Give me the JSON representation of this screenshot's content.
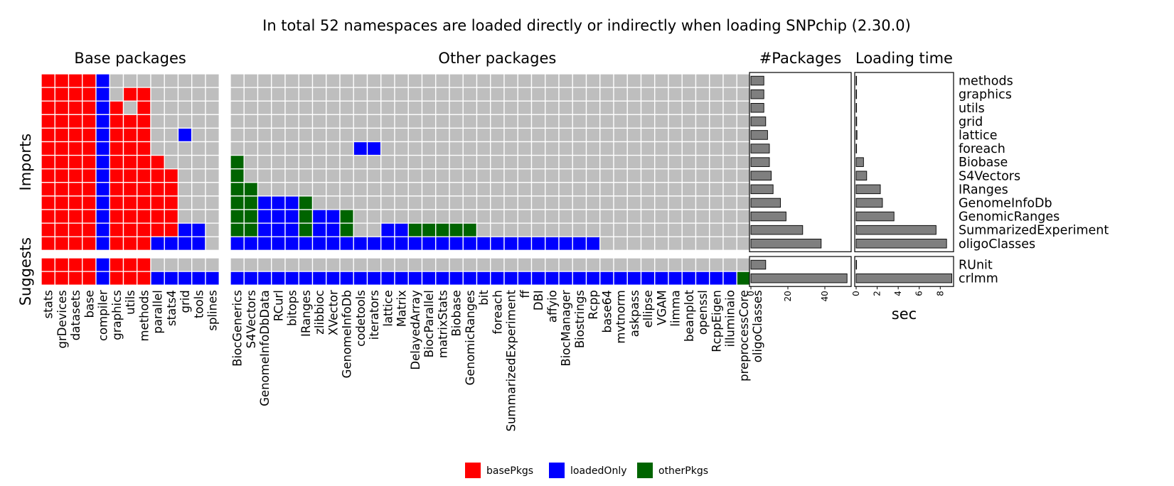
{
  "title": "In total 52 namespaces are loaded directly or indirectly when loading SNPchip (2.30.0)",
  "colors": {
    "basePkgs": "#ff0000",
    "loadedOnly": "#0000ff",
    "otherPkgs": "#006400",
    "empty": "#bebebe",
    "bar": "#7f7f7f"
  },
  "chart_data": [
    {
      "type": "heatmap",
      "panels": [
        {
          "title": "Base packages",
          "columns": [
            "stats",
            "grDevices",
            "datasets",
            "base",
            "compiler",
            "graphics",
            "utils",
            "methods",
            "parallel",
            "stats4",
            "grid",
            "tools",
            "splines"
          ]
        },
        {
          "title": "Other packages",
          "columns": [
            "BiocGenerics",
            "S4Vectors",
            "GenomeInfoDbData",
            "RCurl",
            "bitops",
            "IRanges",
            "zlibbioc",
            "XVector",
            "GenomeInfoDb",
            "codetools",
            "iterators",
            "lattice",
            "Matrix",
            "DelayedArray",
            "BiocParallel",
            "matrixStats",
            "Biobase",
            "GenomicRanges",
            "bit",
            "foreach",
            "SummarizedExperiment",
            "ff",
            "DBI",
            "affyio",
            "BiocManager",
            "Biostrings",
            "Rcpp",
            "base64",
            "mvtnorm",
            "askpass",
            "ellipse",
            "VGAM",
            "limma",
            "beanplot",
            "openssl",
            "RcppEigen",
            "illuminaio",
            "preprocessCore",
            "oligoClasses"
          ]
        }
      ],
      "row_groups": [
        {
          "label": "Imports",
          "rows": [
            "methods",
            "graphics",
            "utils",
            "grid",
            "lattice",
            "foreach",
            "Biobase",
            "S4Vectors",
            "IRanges",
            "GenomeInfoDb",
            "GenomicRanges",
            "SummarizedExperiment",
            "oligoClasses"
          ]
        },
        {
          "label": "Suggests",
          "rows": [
            "RUnit",
            "crlmm"
          ]
        }
      ],
      "code_legend": {
        "0": "none",
        "1": "basePkgs",
        "2": "loadedOnly",
        "3": "otherPkgs"
      },
      "cells": {
        "methods": {
          "base": "1111200000000",
          "other": "000000000000000000000000000000000000000"
        },
        "graphics": {
          "base": "1111201100000",
          "other": "000000000000000000000000000000000000000"
        },
        "utils": {
          "base": "1111210100000",
          "other": "000000000000000000000000000000000000000"
        },
        "grid": {
          "base": "1111211100000",
          "other": "000000000000000000000000000000000000000"
        },
        "lattice": {
          "base": "1111211100200",
          "other": "000000000000000000000000000000000000000"
        },
        "foreach": {
          "base": "1111211100000",
          "other": "000000000220000000000000000000000000000"
        },
        "Biobase": {
          "base": "1111211110000",
          "other": "300000000000000000000000000000000000000"
        },
        "S4Vectors": {
          "base": "1111211111000",
          "other": "300000000000000000000000000000000000000"
        },
        "IRanges": {
          "base": "1111211111000",
          "other": "330000000000000000000000000000000000000"
        },
        "GenomeInfoDb": {
          "base": "1111211111000",
          "other": "332223000000000000000000000000000000000"
        },
        "GenomicRanges": {
          "base": "1111211111000",
          "other": "332223223000000000000000000000000000000"
        },
        "SummarizedExperiment": {
          "base": "1111211111220",
          "other": "332223223002233333000000000000000000000"
        },
        "oligoClasses": {
          "base": "1111211122220",
          "other": "222222222222222222222222222000000000000"
        },
        "RUnit": {
          "base": "1111211100000",
          "other": "000000000000000000000000000000000000000"
        },
        "crlmm": {
          "base": "1111211122222",
          "other": "222222222222222222222222222222222222233"
        }
      }
    },
    {
      "type": "bar",
      "orientation": "horizontal",
      "title": "#Packages",
      "xlabel": "",
      "xlim": [
        0,
        55
      ],
      "xticks": [
        0,
        20,
        40
      ],
      "categories": [
        "methods",
        "graphics",
        "utils",
        "grid",
        "lattice",
        "foreach",
        "Biobase",
        "S4Vectors",
        "IRanges",
        "GenomeInfoDb",
        "GenomicRanges",
        "SummarizedExperiment",
        "oligoClasses",
        "RUnit",
        "crlmm"
      ],
      "values": [
        7,
        7,
        7,
        8,
        9,
        10,
        10,
        11,
        12,
        16,
        19,
        28,
        38,
        8,
        52
      ]
    },
    {
      "type": "bar",
      "orientation": "horizontal",
      "title": "Loading time",
      "xlabel": "sec",
      "xlim": [
        0,
        9.4
      ],
      "xticks": [
        0,
        2,
        4,
        6,
        8
      ],
      "categories": [
        "methods",
        "graphics",
        "utils",
        "grid",
        "lattice",
        "foreach",
        "Biobase",
        "S4Vectors",
        "IRanges",
        "GenomeInfoDb",
        "GenomicRanges",
        "SummarizedExperiment",
        "oligoClasses",
        "RUnit",
        "crlmm"
      ],
      "values": [
        0.02,
        0.02,
        0.02,
        0.05,
        0.08,
        0.03,
        0.7,
        1.0,
        2.3,
        2.5,
        3.6,
        7.6,
        8.6,
        0.02,
        9.1
      ]
    }
  ],
  "legend": [
    {
      "key": "basePkgs",
      "label": "basePkgs"
    },
    {
      "key": "loadedOnly",
      "label": "loadedOnly"
    },
    {
      "key": "otherPkgs",
      "label": "otherPkgs"
    }
  ]
}
